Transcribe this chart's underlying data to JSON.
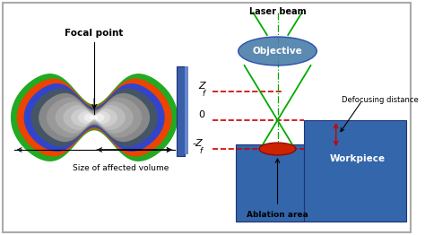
{
  "bg_color": "#ffffff",
  "focal_point_label": "Focal point",
  "size_label": "Size of affected volume",
  "laser_beam_label": "Laser beam",
  "objective_label": "Objective",
  "zf_label": "Z",
  "zf_sub": "f",
  "zero_label": "0",
  "neg_zf_label": "-Z",
  "neg_zf_sub": "f",
  "defocusing_label": "Defocusing distance",
  "workpiece_label": "Workpiece",
  "ablation_label": "Ablation area",
  "green_color": "#00aa00",
  "red_color": "#cc0000",
  "blue_color": "#2255aa",
  "objective_fill": "#4488bb",
  "workpiece_fill": "#3366aa",
  "dashed_red": "#cc0000",
  "layer_colors": [
    "#22aa22",
    "#ee4400",
    "#3344cc",
    "#555577"
  ],
  "gray_colors": [
    "#999999",
    "#aaaaaa",
    "#bbbbbb",
    "#cccccc",
    "#dddddd",
    "#eeeeee",
    "#f8f8f8"
  ]
}
